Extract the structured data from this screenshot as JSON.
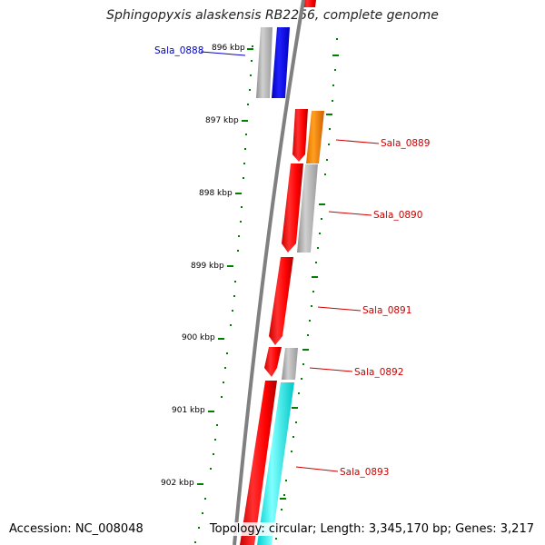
{
  "title": "Sphingopyxis alaskensis RB2256, complete genome",
  "footer": {
    "accession": "Accession: NC_008048",
    "topology": "Topology: circular; Length: 3,345,170 bp; Genes: 3,217"
  },
  "ticks": [
    "896 kbp",
    "897 kbp",
    "898 kbp",
    "899 kbp",
    "900 kbp",
    "901 kbp",
    "902 kbp"
  ],
  "genes": [
    {
      "label": "Sala_0888",
      "color": "#0000ff"
    },
    {
      "label": "Sala_0889",
      "color": "#ff0000"
    },
    {
      "label": "Sala_0890",
      "color": "#ff0000"
    },
    {
      "label": "Sala_0891",
      "color": "#ff0000"
    },
    {
      "label": "Sala_0892",
      "color": "#ff0000"
    },
    {
      "label": "Sala_0893",
      "color": "#ff0000"
    }
  ],
  "colors": {
    "cds": "#ff0000",
    "cds_reverse": "#0000ff",
    "rna": "#ff8c00",
    "cyan_feature": "#00ffff",
    "gray_feature": "#b4b4b4",
    "backbone": "#808080",
    "tick": "#008000"
  }
}
